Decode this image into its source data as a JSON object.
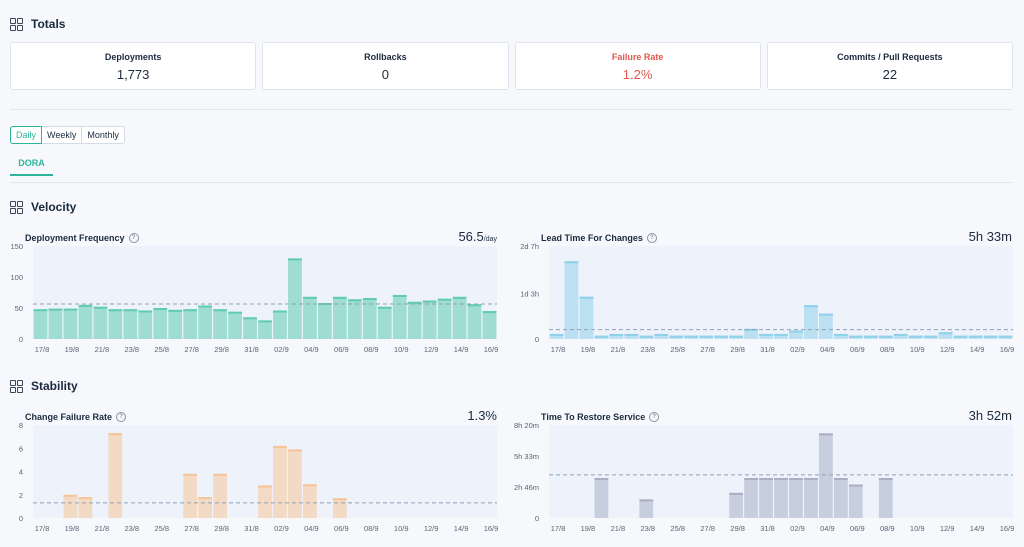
{
  "totals": {
    "title": "Totals",
    "cards": [
      {
        "label": "Deployments",
        "value": "1,773"
      },
      {
        "label": "Rollbacks",
        "value": "0"
      },
      {
        "label": "Failure Rate",
        "value": "1.2%"
      },
      {
        "label": "Commits / Pull Requests",
        "value": "22"
      }
    ]
  },
  "period": {
    "options": [
      "Daily",
      "Weekly",
      "Monthly"
    ],
    "selected": "Daily"
  },
  "tabs": [
    {
      "label": "DORA"
    }
  ],
  "velocity": {
    "title": "Velocity"
  },
  "stability": {
    "title": "Stability"
  },
  "colors": {
    "accent": "#2bb59a",
    "failure": "#e0584e"
  },
  "chart_data": [
    {
      "id": "df",
      "type": "bar",
      "title": "Deployment Frequency",
      "summary": "56.5",
      "summary_unit": "/day",
      "color": "#5fcbb0",
      "ytick_labels": [
        "0",
        "50",
        "100",
        "150"
      ],
      "ytick_values": [
        0,
        50,
        100,
        150
      ],
      "ylim": [
        0,
        150
      ],
      "xtick_labels": [
        "17/8",
        "19/8",
        "21/8",
        "23/8",
        "25/8",
        "27/8",
        "29/8",
        "31/8",
        "02/9",
        "04/9",
        "06/9",
        "08/9",
        "10/9",
        "12/9",
        "14/9",
        "16/9"
      ],
      "values": [
        48,
        49,
        49,
        55,
        52,
        48,
        48,
        46,
        50,
        47,
        48,
        54,
        48,
        44,
        35,
        30,
        46,
        130,
        68,
        58,
        68,
        64,
        66,
        52,
        71,
        60,
        62,
        65,
        68,
        56,
        45
      ],
      "average": 56.5
    },
    {
      "id": "lt",
      "type": "bar",
      "title": "Lead Time For Changes",
      "summary": "5h 33m",
      "color": "#8fd0ea",
      "ytick_labels": [
        "0",
        "1d 3h",
        "2d 7h"
      ],
      "ytick_values": [
        0,
        27,
        55
      ],
      "ylim": [
        0,
        55
      ],
      "xtick_labels": [
        "17/8",
        "19/8",
        "21/8",
        "23/8",
        "25/8",
        "27/8",
        "29/8",
        "31/8",
        "02/9",
        "04/9",
        "06/9",
        "08/9",
        "10/9",
        "12/9",
        "14/9",
        "16/9"
      ],
      "values": [
        3,
        46,
        25,
        2,
        3,
        3,
        2,
        3,
        2,
        2,
        2,
        2,
        2,
        6,
        3,
        3,
        5,
        20,
        15,
        3,
        2,
        2,
        2,
        3,
        2,
        2,
        4,
        2,
        2,
        2,
        2
      ],
      "average": 5.55
    },
    {
      "id": "cfr",
      "type": "bar",
      "title": "Change Failure Rate",
      "summary": "1.3%",
      "color": "#f5c497",
      "ytick_labels": [
        "0",
        "2",
        "4",
        "6",
        "8"
      ],
      "ytick_values": [
        0,
        2,
        4,
        6,
        8
      ],
      "ylim": [
        0,
        8
      ],
      "xtick_labels": [
        "17/8",
        "19/8",
        "21/8",
        "23/8",
        "25/8",
        "27/8",
        "29/8",
        "31/8",
        "02/9",
        "04/9",
        "06/9",
        "08/9",
        "10/9",
        "12/9",
        "14/9",
        "16/9"
      ],
      "values": [
        0,
        0,
        2,
        1.8,
        0,
        7.3,
        0,
        0,
        0,
        0,
        3.8,
        1.8,
        3.8,
        0,
        0,
        2.8,
        6.2,
        5.9,
        2.9,
        0,
        1.7,
        0,
        0,
        0,
        0,
        0,
        0,
        0,
        0,
        0,
        0
      ],
      "average": 1.3
    },
    {
      "id": "ttr",
      "type": "bar",
      "title": "Time To Restore Service",
      "summary": "3h 52m",
      "color": "#a8aec4",
      "ytick_labels": [
        "0",
        "2h 46m",
        "5h 33m",
        "8h 20m"
      ],
      "ytick_values": [
        0,
        166,
        333,
        500
      ],
      "ylim": [
        0,
        500
      ],
      "xtick_labels": [
        "17/8",
        "19/8",
        "21/8",
        "23/8",
        "25/8",
        "27/8",
        "29/8",
        "31/8",
        "02/9",
        "04/9",
        "06/9",
        "08/9",
        "10/9",
        "12/9",
        "14/9",
        "16/9"
      ],
      "values": [
        0,
        0,
        0,
        215,
        0,
        0,
        100,
        0,
        0,
        0,
        0,
        0,
        135,
        215,
        215,
        215,
        215,
        215,
        455,
        215,
        180,
        0,
        215,
        0,
        0,
        0,
        0,
        0,
        0,
        0,
        0
      ],
      "average": 232
    }
  ]
}
